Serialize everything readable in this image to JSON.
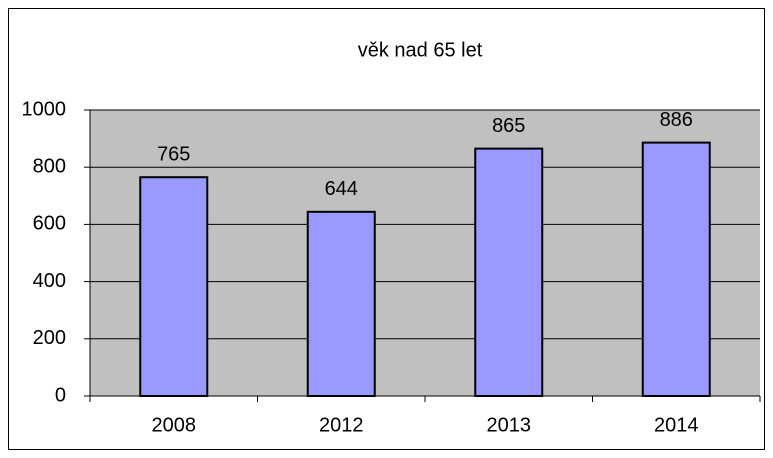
{
  "chart_data": {
    "type": "bar",
    "title": "věk nad 65 let",
    "categories": [
      "2008",
      "2012",
      "2013",
      "2014"
    ],
    "values": [
      765,
      644,
      865,
      886
    ],
    "color": "#9999ff",
    "ylim": [
      0,
      1000
    ],
    "yticks": [
      0,
      200,
      400,
      600,
      800,
      1000
    ],
    "grid": true
  }
}
